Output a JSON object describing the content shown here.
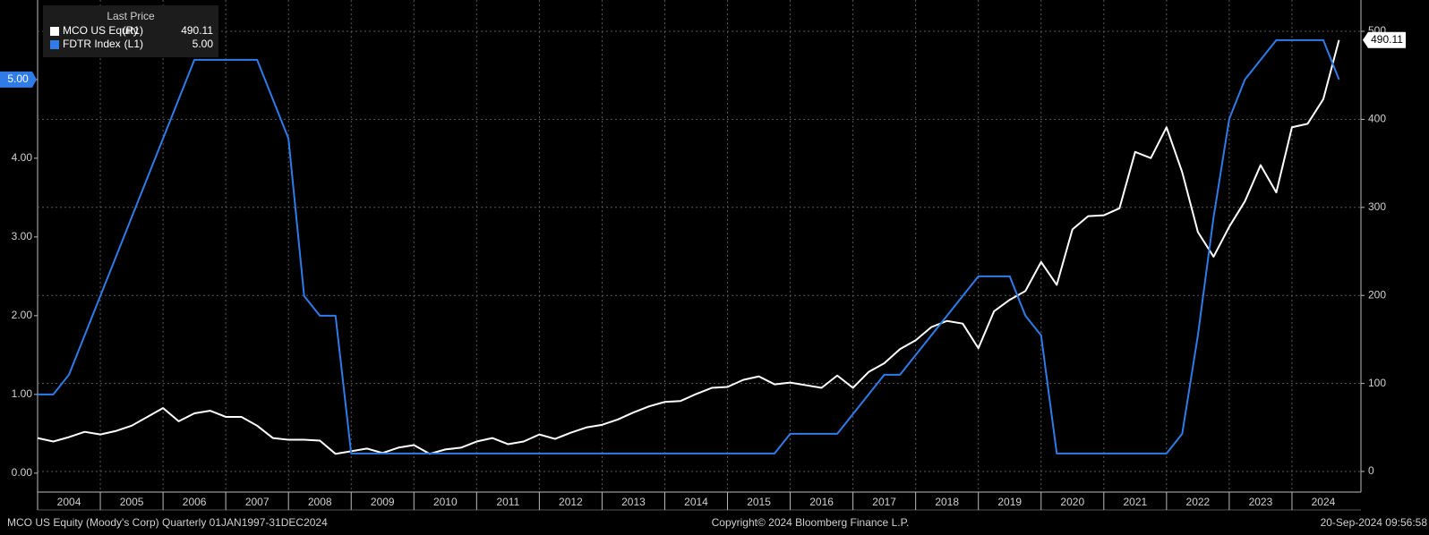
{
  "chart_data": {
    "type": "line",
    "legend_title": "Last Price",
    "source": "MCO US Equity (Moody's Corp)  Quarterly 01JAN1997-31DEC2024",
    "copyright": "Copyright© 2024 Bloomberg Finance L.P.",
    "timestamp": "20-Sep-2024 09:56:58",
    "x": [
      2004,
      2004.25,
      2004.5,
      2004.75,
      2005,
      2005.25,
      2005.5,
      2005.75,
      2006,
      2006.25,
      2006.5,
      2006.75,
      2007,
      2007.25,
      2007.5,
      2007.75,
      2008,
      2008.25,
      2008.5,
      2008.75,
      2009,
      2009.25,
      2009.5,
      2009.75,
      2010,
      2010.25,
      2010.5,
      2010.75,
      2011,
      2011.25,
      2011.5,
      2011.75,
      2012,
      2012.25,
      2012.5,
      2012.75,
      2013,
      2013.25,
      2013.5,
      2013.75,
      2014,
      2014.25,
      2014.5,
      2014.75,
      2015,
      2015.25,
      2015.5,
      2015.75,
      2016,
      2016.25,
      2016.5,
      2016.75,
      2017,
      2017.25,
      2017.5,
      2017.75,
      2018,
      2018.25,
      2018.5,
      2018.75,
      2019,
      2019.25,
      2019.5,
      2019.75,
      2020,
      2020.25,
      2020.5,
      2020.75,
      2021,
      2021.25,
      2021.5,
      2021.75,
      2022,
      2022.25,
      2022.5,
      2022.75,
      2023,
      2023.25,
      2023.5,
      2023.75,
      2024,
      2024.25,
      2024.5,
      2024.75
    ],
    "series": [
      {
        "name": "MCO US Equity",
        "axis_tag": "(R1)",
        "last_label": "490.11",
        "color": "#ffffff",
        "axis": "y2",
        "values": [
          38,
          34,
          39,
          45,
          42,
          46,
          52,
          62,
          72,
          57,
          66,
          69,
          62,
          62,
          52,
          38,
          36,
          36,
          35,
          20,
          23,
          26,
          21,
          27,
          30,
          20,
          25,
          27,
          34,
          38,
          31,
          34,
          42,
          37,
          44,
          50,
          53,
          59,
          67,
          74,
          79,
          80,
          88,
          95,
          96,
          104,
          108,
          99,
          101,
          98,
          95,
          109,
          95,
          113,
          123,
          139,
          149,
          164,
          171,
          168,
          140,
          182,
          195,
          205,
          238,
          212,
          275,
          290,
          291,
          299,
          363,
          356,
          391,
          340,
          272,
          244,
          278,
          307,
          348,
          317,
          391,
          395,
          423,
          490.11
        ]
      },
      {
        "name": "FDTR Index",
        "axis_tag": "(L1)",
        "last_label": "5.00",
        "color": "#2f7be8",
        "axis": "y",
        "values": [
          1.0,
          1.0,
          1.25,
          1.75,
          2.25,
          2.75,
          3.25,
          3.75,
          4.25,
          4.75,
          5.25,
          5.25,
          5.25,
          5.25,
          5.25,
          4.75,
          4.25,
          2.25,
          2.0,
          2.0,
          0.25,
          0.25,
          0.25,
          0.25,
          0.25,
          0.25,
          0.25,
          0.25,
          0.25,
          0.25,
          0.25,
          0.25,
          0.25,
          0.25,
          0.25,
          0.25,
          0.25,
          0.25,
          0.25,
          0.25,
          0.25,
          0.25,
          0.25,
          0.25,
          0.25,
          0.25,
          0.25,
          0.25,
          0.5,
          0.5,
          0.5,
          0.5,
          0.75,
          1.0,
          1.25,
          1.25,
          1.5,
          1.75,
          2.0,
          2.25,
          2.5,
          2.5,
          2.5,
          2.0,
          1.75,
          0.25,
          0.25,
          0.25,
          0.25,
          0.25,
          0.25,
          0.25,
          0.25,
          0.5,
          1.75,
          3.25,
          4.5,
          5.0,
          5.25,
          5.5,
          5.5,
          5.5,
          5.5,
          5.0
        ]
      }
    ],
    "xlim": [
      2004,
      2025.1
    ],
    "xticks": [
      2004,
      2005,
      2006,
      2007,
      2008,
      2009,
      2010,
      2011,
      2012,
      2013,
      2014,
      2015,
      2016,
      2017,
      2018,
      2019,
      2020,
      2021,
      2022,
      2023,
      2024
    ],
    "ylim": [
      -0.24,
      6.01
    ],
    "yticks": [
      {
        "value": 0,
        "label": "0.00"
      },
      {
        "value": 1,
        "label": "1.00"
      },
      {
        "value": 2,
        "label": "2.00"
      },
      {
        "value": 3,
        "label": "3.00"
      },
      {
        "value": 4,
        "label": "4.00"
      },
      {
        "value": 5,
        "label": "5.00"
      }
    ],
    "y2lim": [
      -23.4,
      535.6
    ],
    "y2ticks": [
      0,
      100,
      200,
      300,
      400,
      500
    ],
    "grid": true
  }
}
